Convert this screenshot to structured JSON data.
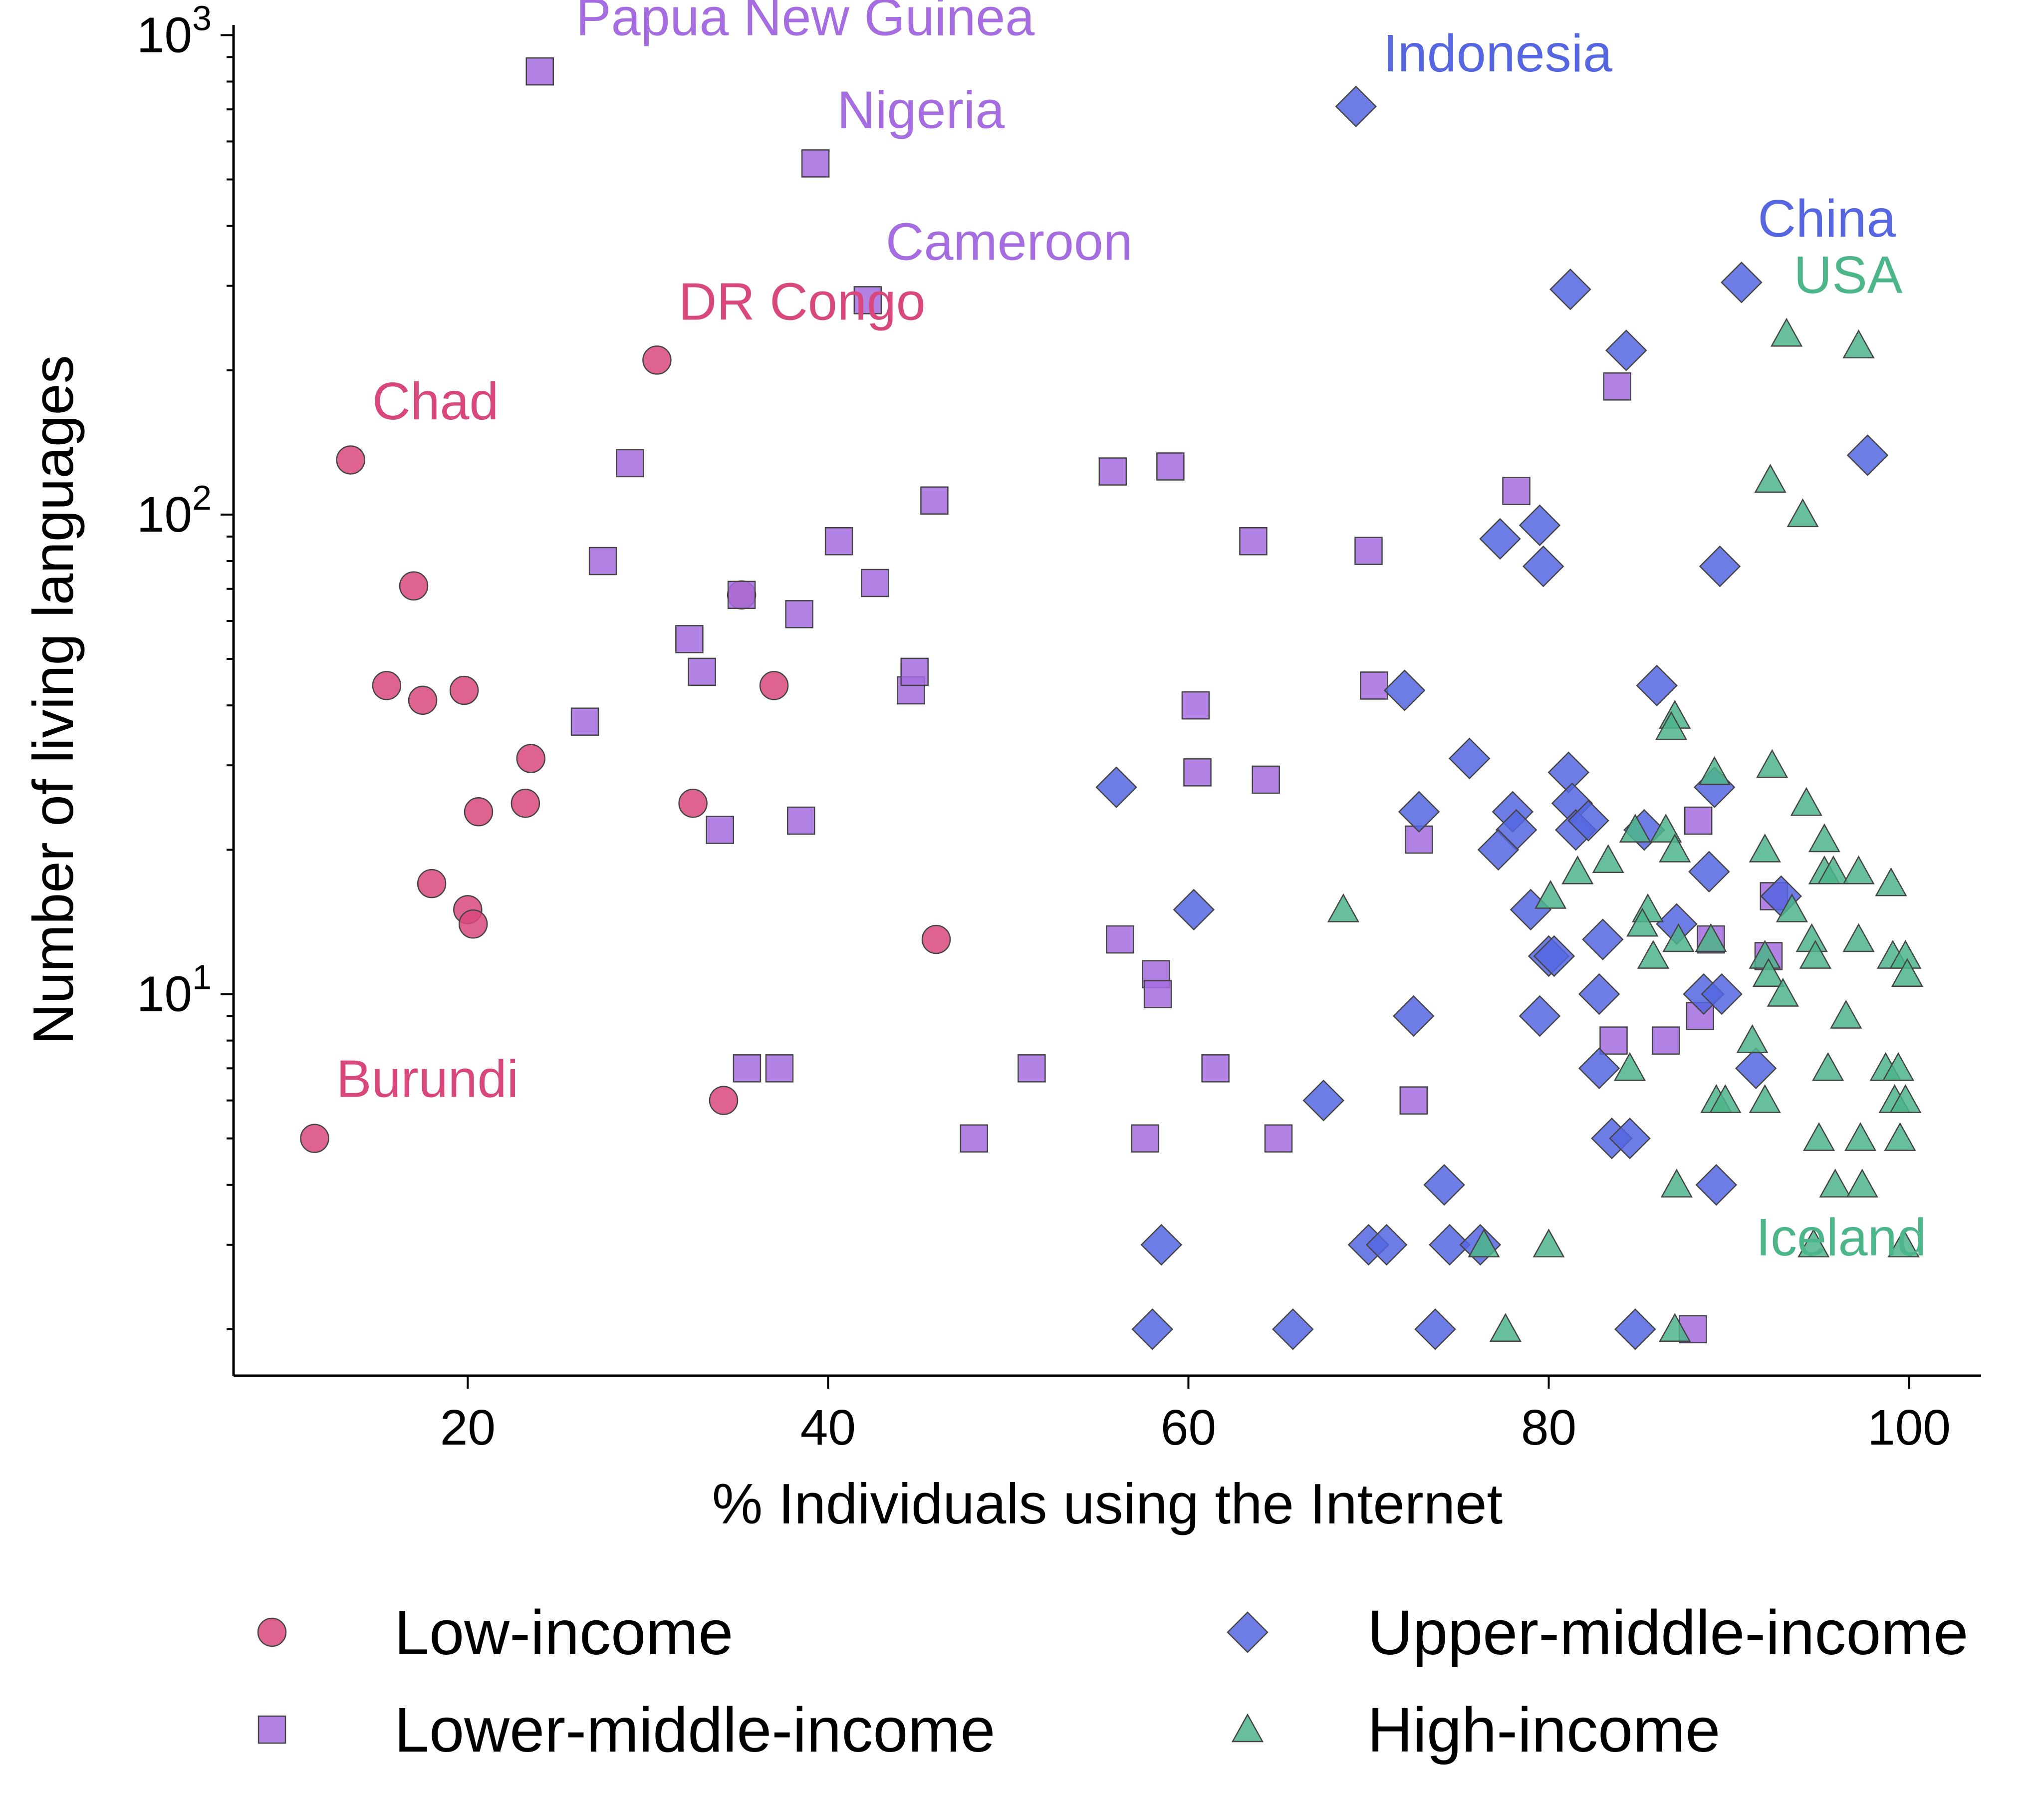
{
  "chart_data": {
    "type": "scatter",
    "xlabel": "% Individuals using the Internet",
    "ylabel": "Number of living languages",
    "xlim": [
      7,
      104
    ],
    "ylim": [
      1.6,
      1050
    ],
    "yscale": "log",
    "x_ticks": [
      20,
      40,
      60,
      80,
      100
    ],
    "y_ticks": [
      {
        "value": 10,
        "base": "10",
        "exp": "1"
      },
      {
        "value": 100,
        "base": "10",
        "exp": "2"
      },
      {
        "value": 1000,
        "base": "10",
        "exp": "3"
      }
    ],
    "grid": false,
    "legend_placement": "bottom",
    "series": [
      {
        "name": "Low-income",
        "marker": "circle",
        "color": "#d9487c",
        "points": [
          [
            11.5,
            5
          ],
          [
            13.5,
            130
          ],
          [
            15.5,
            44
          ],
          [
            17,
            71
          ],
          [
            17.5,
            41
          ],
          [
            18,
            17
          ],
          [
            19.8,
            43
          ],
          [
            20,
            15
          ],
          [
            20.3,
            14
          ],
          [
            20.6,
            24
          ],
          [
            23.2,
            25
          ],
          [
            23.5,
            31
          ],
          [
            30.5,
            210
          ],
          [
            32.5,
            25
          ],
          [
            34.2,
            6
          ],
          [
            35.2,
            68
          ],
          [
            37,
            44
          ],
          [
            46,
            13
          ]
        ]
      },
      {
        "name": "Lower-middle-income",
        "marker": "square",
        "color": "#a56de0",
        "points": [
          [
            24,
            840
          ],
          [
            26.5,
            37
          ],
          [
            27.5,
            80
          ],
          [
            29,
            128
          ],
          [
            32.3,
            55
          ],
          [
            33,
            47
          ],
          [
            34,
            22
          ],
          [
            35.2,
            68
          ],
          [
            35.5,
            7
          ],
          [
            37.3,
            7
          ],
          [
            38.4,
            62
          ],
          [
            38.5,
            23
          ],
          [
            39.3,
            540
          ],
          [
            40.6,
            88
          ],
          [
            42.2,
            280
          ],
          [
            42.6,
            72
          ],
          [
            44.6,
            43
          ],
          [
            44.8,
            47
          ],
          [
            45.9,
            107
          ],
          [
            48.1,
            5
          ],
          [
            51.3,
            7
          ],
          [
            55.8,
            123
          ],
          [
            56.2,
            13
          ],
          [
            57.6,
            5
          ],
          [
            58.2,
            11
          ],
          [
            58.3,
            10
          ],
          [
            59,
            126
          ],
          [
            60.4,
            40
          ],
          [
            60.5,
            29
          ],
          [
            61.5,
            7
          ],
          [
            63.6,
            88
          ],
          [
            64.3,
            28
          ],
          [
            65,
            5
          ],
          [
            70,
            84
          ],
          [
            70.3,
            44
          ],
          [
            72.5,
            6
          ],
          [
            72.8,
            21
          ],
          [
            78.2,
            112
          ],
          [
            83.6,
            8
          ],
          [
            83.8,
            185
          ],
          [
            86.5,
            8
          ],
          [
            88,
            2
          ],
          [
            88.3,
            23
          ],
          [
            88.4,
            9
          ],
          [
            89,
            13
          ],
          [
            92.2,
            12
          ],
          [
            92.5,
            16
          ]
        ]
      },
      {
        "name": "Upper-middle-income",
        "marker": "diamond",
        "color": "#5566e0",
        "points": [
          [
            69.3,
            710
          ],
          [
            81.2,
            295
          ],
          [
            84.3,
            220
          ],
          [
            90.7,
            305
          ],
          [
            97.7,
            133
          ],
          [
            77.3,
            89
          ],
          [
            79.5,
            95
          ],
          [
            79.7,
            78
          ],
          [
            89.5,
            78
          ],
          [
            72,
            43
          ],
          [
            86,
            44
          ],
          [
            75.6,
            31
          ],
          [
            81.1,
            29
          ],
          [
            89.2,
            27
          ],
          [
            78,
            24
          ],
          [
            81.3,
            25
          ],
          [
            72.8,
            24
          ],
          [
            78.2,
            22
          ],
          [
            81.5,
            22
          ],
          [
            82.2,
            23
          ],
          [
            85.3,
            22
          ],
          [
            77.2,
            20
          ],
          [
            88.9,
            18
          ],
          [
            56,
            27
          ],
          [
            60.3,
            15
          ],
          [
            79,
            15
          ],
          [
            87.1,
            14
          ],
          [
            92.9,
            16
          ],
          [
            80,
            12
          ],
          [
            80.3,
            12
          ],
          [
            83,
            13
          ],
          [
            88.6,
            10
          ],
          [
            89.6,
            10
          ],
          [
            82.8,
            10
          ],
          [
            79.5,
            9
          ],
          [
            72.5,
            9
          ],
          [
            82.8,
            7
          ],
          [
            91.5,
            7
          ],
          [
            67.5,
            6
          ],
          [
            83.5,
            5
          ],
          [
            84.5,
            5
          ],
          [
            74.2,
            4
          ],
          [
            89.3,
            4
          ],
          [
            58.5,
            3
          ],
          [
            70,
            3
          ],
          [
            71,
            3
          ],
          [
            74.5,
            3
          ],
          [
            76.2,
            3
          ],
          [
            58,
            2
          ],
          [
            65.8,
            2
          ],
          [
            73.7,
            2
          ],
          [
            84.8,
            2
          ]
        ]
      },
      {
        "name": "High-income",
        "marker": "triangle",
        "color": "#4cb58a",
        "points": [
          [
            93.2,
            238
          ],
          [
            97.2,
            225
          ],
          [
            92.3,
            118
          ],
          [
            94.1,
            100
          ],
          [
            87,
            38
          ],
          [
            86.8,
            36
          ],
          [
            89.2,
            29
          ],
          [
            92.4,
            30
          ],
          [
            94.3,
            25
          ],
          [
            84.8,
            22
          ],
          [
            86.5,
            22
          ],
          [
            92,
            20
          ],
          [
            95.3,
            21
          ],
          [
            87,
            20
          ],
          [
            80.1,
            16
          ],
          [
            81.6,
            18
          ],
          [
            83.3,
            19
          ],
          [
            95.3,
            18
          ],
          [
            95.8,
            18
          ],
          [
            97.2,
            18
          ],
          [
            93.5,
            15
          ],
          [
            99,
            17
          ],
          [
            68.6,
            15
          ],
          [
            85.5,
            15
          ],
          [
            85.2,
            14
          ],
          [
            89,
            13
          ],
          [
            87.2,
            13
          ],
          [
            85.8,
            12
          ],
          [
            94.6,
            13
          ],
          [
            92,
            12
          ],
          [
            94.8,
            12
          ],
          [
            97.2,
            13
          ],
          [
            99.1,
            12
          ],
          [
            99.8,
            12
          ],
          [
            99.9,
            11
          ],
          [
            92.2,
            11
          ],
          [
            93,
            10
          ],
          [
            96.5,
            9
          ],
          [
            91.3,
            8
          ],
          [
            84.5,
            7
          ],
          [
            95.5,
            7
          ],
          [
            98.7,
            7
          ],
          [
            99.4,
            7
          ],
          [
            99.2,
            6
          ],
          [
            89.3,
            6
          ],
          [
            89.8,
            6
          ],
          [
            92,
            6
          ],
          [
            99.8,
            6
          ],
          [
            95,
            5
          ],
          [
            97.3,
            5
          ],
          [
            99.5,
            5
          ],
          [
            87.1,
            4
          ],
          [
            95.9,
            4
          ],
          [
            97.4,
            4
          ],
          [
            76.4,
            3
          ],
          [
            80,
            3
          ],
          [
            94.7,
            3
          ],
          [
            99.7,
            3
          ],
          [
            77.6,
            2
          ],
          [
            87,
            2
          ]
        ]
      }
    ],
    "annotations": [
      {
        "text": "Papua New Guinea",
        "x": 26,
        "y": 1000,
        "series": "Lower-middle-income"
      },
      {
        "text": "Nigeria",
        "x": 40.5,
        "y": 640,
        "series": "Lower-middle-income"
      },
      {
        "text": "Cameroon",
        "x": 43.2,
        "y": 340,
        "series": "Lower-middle-income"
      },
      {
        "text": "DR Congo",
        "x": 31.7,
        "y": 255,
        "series": "Low-income"
      },
      {
        "text": "Chad",
        "x": 14.7,
        "y": 158,
        "series": "Low-income"
      },
      {
        "text": "Burundi",
        "x": 12.7,
        "y": 6.1,
        "series": "Low-income"
      },
      {
        "text": "Indonesia",
        "x": 70.8,
        "y": 840,
        "series": "Upper-middle-income"
      },
      {
        "text": "China",
        "x": 91.6,
        "y": 380,
        "series": "Upper-middle-income"
      },
      {
        "text": "USA",
        "x": 93.6,
        "y": 290,
        "series": "High-income"
      },
      {
        "text": "Iceland",
        "x": 91.5,
        "y": 2.85,
        "series": "High-income"
      }
    ]
  }
}
